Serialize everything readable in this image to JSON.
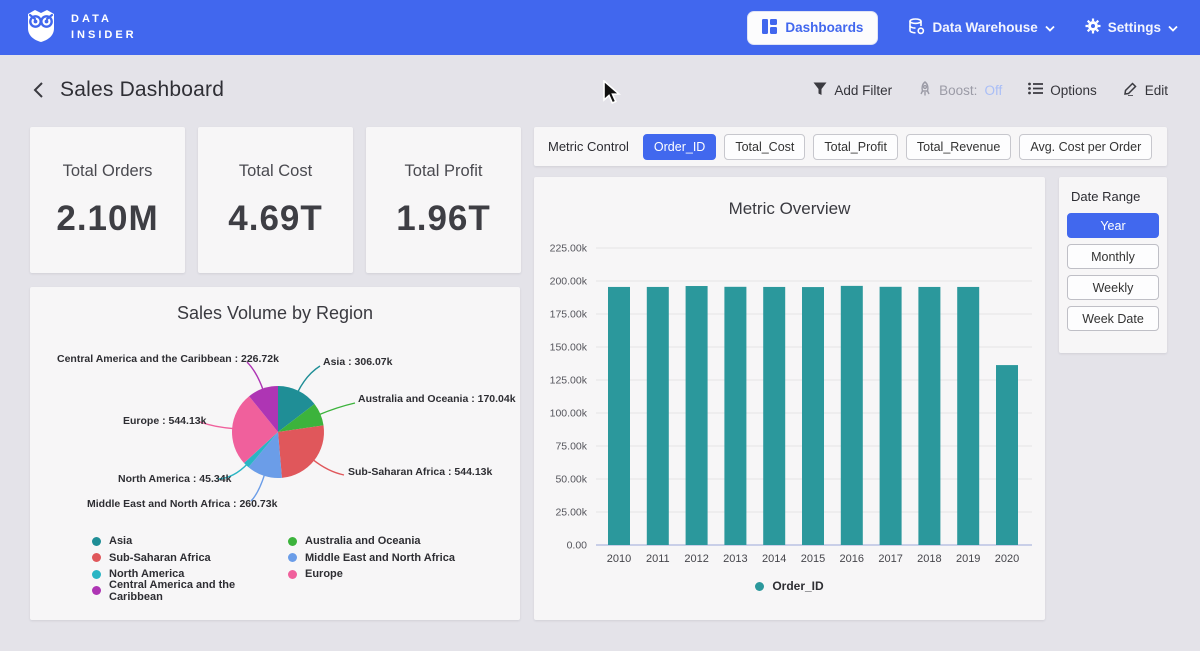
{
  "nav": {
    "brand": {
      "line1": "DATA",
      "line2": "INSIDER"
    },
    "items": [
      {
        "label": "Dashboards"
      },
      {
        "label": "Data Warehouse"
      },
      {
        "label": "Settings"
      }
    ]
  },
  "header": {
    "title": "Sales Dashboard",
    "actions": {
      "add_filter": "Add Filter",
      "boost_label": "Boost:",
      "boost_value": "Off",
      "options": "Options",
      "edit": "Edit"
    }
  },
  "kpis": [
    {
      "label": "Total Orders",
      "value": "2.10M"
    },
    {
      "label": "Total Cost",
      "value": "4.69T"
    },
    {
      "label": "Total Profit",
      "value": "1.96T"
    }
  ],
  "metric_control": {
    "label": "Metric Control",
    "options": [
      {
        "label": "Order_ID",
        "selected": true
      },
      {
        "label": "Total_Cost",
        "selected": false
      },
      {
        "label": "Total_Profit",
        "selected": false
      },
      {
        "label": "Total_Revenue",
        "selected": false
      },
      {
        "label": "Avg. Cost per Order",
        "selected": false
      }
    ]
  },
  "date_range": {
    "label": "Date Range",
    "options": [
      {
        "label": "Year",
        "selected": true
      },
      {
        "label": "Monthly",
        "selected": false
      },
      {
        "label": "Weekly",
        "selected": false
      },
      {
        "label": "Week Date",
        "selected": false
      }
    ]
  },
  "colors": {
    "nav_blue": "#4167ee",
    "selected_blue": "#4168ee",
    "bar_teal": "#2b989c",
    "page_bg": "#e4e3e9",
    "card_bg": "#f7f6f7"
  },
  "chart_data": [
    {
      "type": "pie",
      "title": "Sales Volume by Region",
      "slices": [
        {
          "name": "Asia",
          "value": 306.07,
          "display": "306.07k",
          "color": "#1f8e96"
        },
        {
          "name": "Australia and Oceania",
          "value": 170.04,
          "display": "170.04k",
          "color": "#3cb33c"
        },
        {
          "name": "Sub-Saharan Africa",
          "value": 544.13,
          "display": "544.13k",
          "color": "#e0575b"
        },
        {
          "name": "Middle East and North Africa",
          "value": 260.73,
          "display": "260.73k",
          "color": "#6b9de8"
        },
        {
          "name": "North America",
          "value": 45.34,
          "display": "45.34k",
          "color": "#2ab5c4"
        },
        {
          "name": "Europe",
          "value": 544.13,
          "display": "544.13k",
          "color": "#f0609c"
        },
        {
          "name": "Central America and the Caribbean",
          "value": 226.72,
          "display": "226.72k",
          "color": "#ae35b4"
        }
      ],
      "legend_column_order": [
        0,
        1,
        2,
        3,
        4,
        5,
        6
      ],
      "legend_position": "bottom"
    },
    {
      "type": "bar",
      "title": "Metric Overview",
      "categories": [
        "2010",
        "2011",
        "2012",
        "2013",
        "2014",
        "2015",
        "2016",
        "2017",
        "2018",
        "2019",
        "2020"
      ],
      "values": [
        195500,
        195500,
        196200,
        195600,
        195500,
        195400,
        196300,
        195600,
        195500,
        195500,
        136300
      ],
      "series_name": "Order_ID",
      "bar_color": "#2b989c",
      "xlabel": "",
      "ylabel": "",
      "ylim": [
        0,
        225000
      ],
      "ytick_step": 25000,
      "ytick_labels": [
        "0.00",
        "25.00k",
        "50.00k",
        "75.00k",
        "100.00k",
        "125.00k",
        "150.00k",
        "175.00k",
        "200.00k",
        "225.00k"
      ],
      "grid": true,
      "legend": [
        "Order_ID"
      ],
      "legend_position": "bottom"
    }
  ]
}
